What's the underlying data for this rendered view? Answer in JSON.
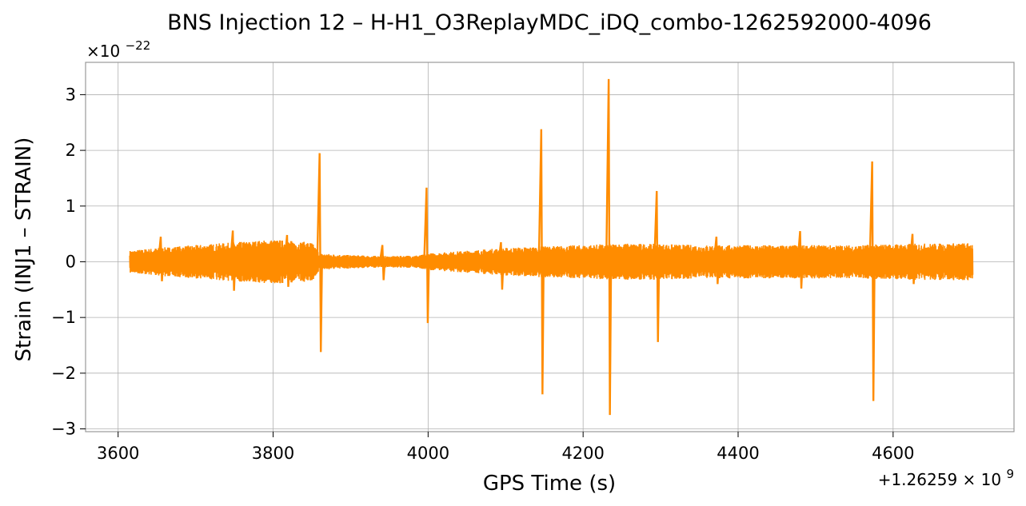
{
  "chart_data": {
    "type": "line",
    "title": "BNS Injection 12 – H-H1_O3ReplayMDC_iDQ_combo-1262592000-4096",
    "xlabel": "GPS Time (s)",
    "ylabel": "Strain (INJ1 – STRAIN)",
    "x_offset_label": "+1.26259 × 10",
    "x_offset_exp": "9",
    "y_scale_label": "×10",
    "y_scale_exp": "−22",
    "x_ticks": [
      3600,
      3800,
      4000,
      4200,
      4400,
      4600
    ],
    "y_ticks": [
      -3,
      -2,
      -1,
      0,
      1,
      2,
      3
    ],
    "y_tick_labels": [
      "−3",
      "−2",
      "−1",
      "0",
      "1",
      "2",
      "3"
    ],
    "xlim": [
      3558,
      4756
    ],
    "ylim": [
      -3.05,
      3.58
    ],
    "grid": true,
    "series": [
      {
        "color": "#ff8c00",
        "x_range": [
          3615,
          4703
        ],
        "envelope": [
          [
            3615,
            0.2
          ],
          [
            3650,
            0.25
          ],
          [
            3700,
            0.3
          ],
          [
            3750,
            0.35
          ],
          [
            3800,
            0.4
          ],
          [
            3850,
            0.35
          ],
          [
            3860,
            0.15
          ],
          [
            3900,
            0.12
          ],
          [
            3950,
            0.1
          ],
          [
            3990,
            0.12
          ],
          [
            4000,
            0.15
          ],
          [
            4050,
            0.2
          ],
          [
            4100,
            0.25
          ],
          [
            4150,
            0.28
          ],
          [
            4200,
            0.3
          ],
          [
            4250,
            0.33
          ],
          [
            4300,
            0.32
          ],
          [
            4350,
            0.3
          ],
          [
            4400,
            0.3
          ],
          [
            4450,
            0.3
          ],
          [
            4500,
            0.3
          ],
          [
            4550,
            0.3
          ],
          [
            4600,
            0.32
          ],
          [
            4650,
            0.33
          ],
          [
            4703,
            0.34
          ]
        ],
        "glitches": [
          {
            "x": 3655,
            "up": 0.45,
            "down": -0.35
          },
          {
            "x": 3748,
            "up": 0.56,
            "down": -0.52
          },
          {
            "x": 3818,
            "up": 0.48,
            "down": -0.45
          },
          {
            "x": 3860,
            "up": 1.95,
            "down": -1.62
          },
          {
            "x": 3941,
            "up": 0.3,
            "down": -0.33
          },
          {
            "x": 3998,
            "up": 1.33,
            "down": -1.1
          },
          {
            "x": 4094,
            "up": 0.35,
            "down": -0.5
          },
          {
            "x": 4146,
            "up": 2.38,
            "down": -2.38
          },
          {
            "x": 4233,
            "up": 3.28,
            "down": -2.75
          },
          {
            "x": 4295,
            "up": 1.27,
            "down": -1.44
          },
          {
            "x": 4372,
            "up": 0.45,
            "down": -0.4
          },
          {
            "x": 4480,
            "up": 0.55,
            "down": -0.48
          },
          {
            "x": 4573,
            "up": 1.8,
            "down": -2.5
          },
          {
            "x": 4625,
            "up": 0.5,
            "down": -0.4
          }
        ]
      }
    ]
  }
}
